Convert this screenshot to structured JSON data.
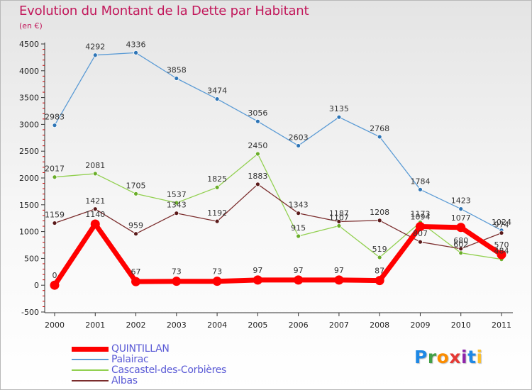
{
  "header": {
    "title": "Evolution du Montant de la Dette par Habitant",
    "unit": "(en €)"
  },
  "colors": {
    "title": "#c2185b",
    "axis": "#333333",
    "tick_mark": "#cc0000",
    "legend_text": "#5b5bd6"
  },
  "chart_data": {
    "type": "line",
    "title": "Evolution du Montant de la Dette par Habitant",
    "ylabel": "(en €)",
    "xlabel": "",
    "ylim": [
      -500,
      4500
    ],
    "yticks": [
      -500,
      0,
      500,
      1000,
      1500,
      2000,
      2500,
      3000,
      3500,
      4000,
      4500
    ],
    "categories": [
      "2000",
      "2001",
      "2002",
      "2003",
      "2004",
      "2005",
      "2006",
      "2007",
      "2008",
      "2009",
      "2010",
      "2011"
    ],
    "grid": false,
    "legend_position": "bottom-left",
    "series": [
      {
        "name": "Palairac",
        "color": "#5b9bd5",
        "point_color": "#2e75b6",
        "values": [
          2983,
          4292,
          4336,
          3858,
          3474,
          3056,
          2603,
          3135,
          2768,
          1784,
          1423,
          1024
        ],
        "labels": [
          "2983",
          "4292",
          "4336",
          "3858",
          "3474",
          "3056",
          "2603",
          "3135",
          "2768",
          "1784",
          "1423",
          "1024"
        ]
      },
      {
        "name": "Cascastel-des-Corbières",
        "color": "#92d050",
        "point_color": "#6aad2a",
        "values": [
          2017,
          2081,
          1705,
          1537,
          1825,
          2450,
          915,
          1107,
          519,
          1173,
          602,
          484
        ],
        "labels": [
          "2017",
          "2081",
          "1705",
          "1537",
          "1825",
          "2450",
          "915",
          "1107",
          "519",
          "1173",
          "602",
          "484"
        ]
      },
      {
        "name": "Albas",
        "color": "#7b2d2d",
        "point_color": "#5a1a1a",
        "values": [
          1159,
          1421,
          959,
          1343,
          1192,
          1883,
          1343,
          1187,
          1208,
          807,
          680,
          974
        ],
        "labels": [
          "1159",
          "1421",
          "959",
          "1343",
          "1192",
          "1883",
          "1343",
          "1187",
          "1208",
          "807",
          "680",
          "974"
        ]
      },
      {
        "name": "QUINTILLAN",
        "color": "#ff0000",
        "point_color": "#ff0000",
        "values": [
          0,
          1140,
          67,
          73,
          73,
          97,
          97,
          97,
          87,
          1094,
          1077,
          570
        ],
        "labels": [
          "0",
          "1140",
          "67",
          "73",
          "73",
          "97",
          "97",
          "97",
          "87",
          "1094",
          "1077",
          "570"
        ]
      }
    ]
  },
  "legend": {
    "items": [
      {
        "label": "QUINTILLAN",
        "color": "#ff0000",
        "weight": "thick"
      },
      {
        "label": "Palairac",
        "color": "#5b9bd5",
        "weight": "thin"
      },
      {
        "label": "Cascastel-des-Corbières",
        "color": "#92d050",
        "weight": "thin"
      },
      {
        "label": "Albas",
        "color": "#7b2d2d",
        "weight": "thin"
      }
    ]
  },
  "logo": {
    "letters": [
      "P",
      "r",
      "o",
      "x",
      "i",
      "t",
      "i"
    ],
    "colors": [
      "#1e88e5",
      "#43a047",
      "#fb8c00",
      "#e53935",
      "#8e24aa",
      "#1e88e5",
      "#fbc02d"
    ]
  }
}
